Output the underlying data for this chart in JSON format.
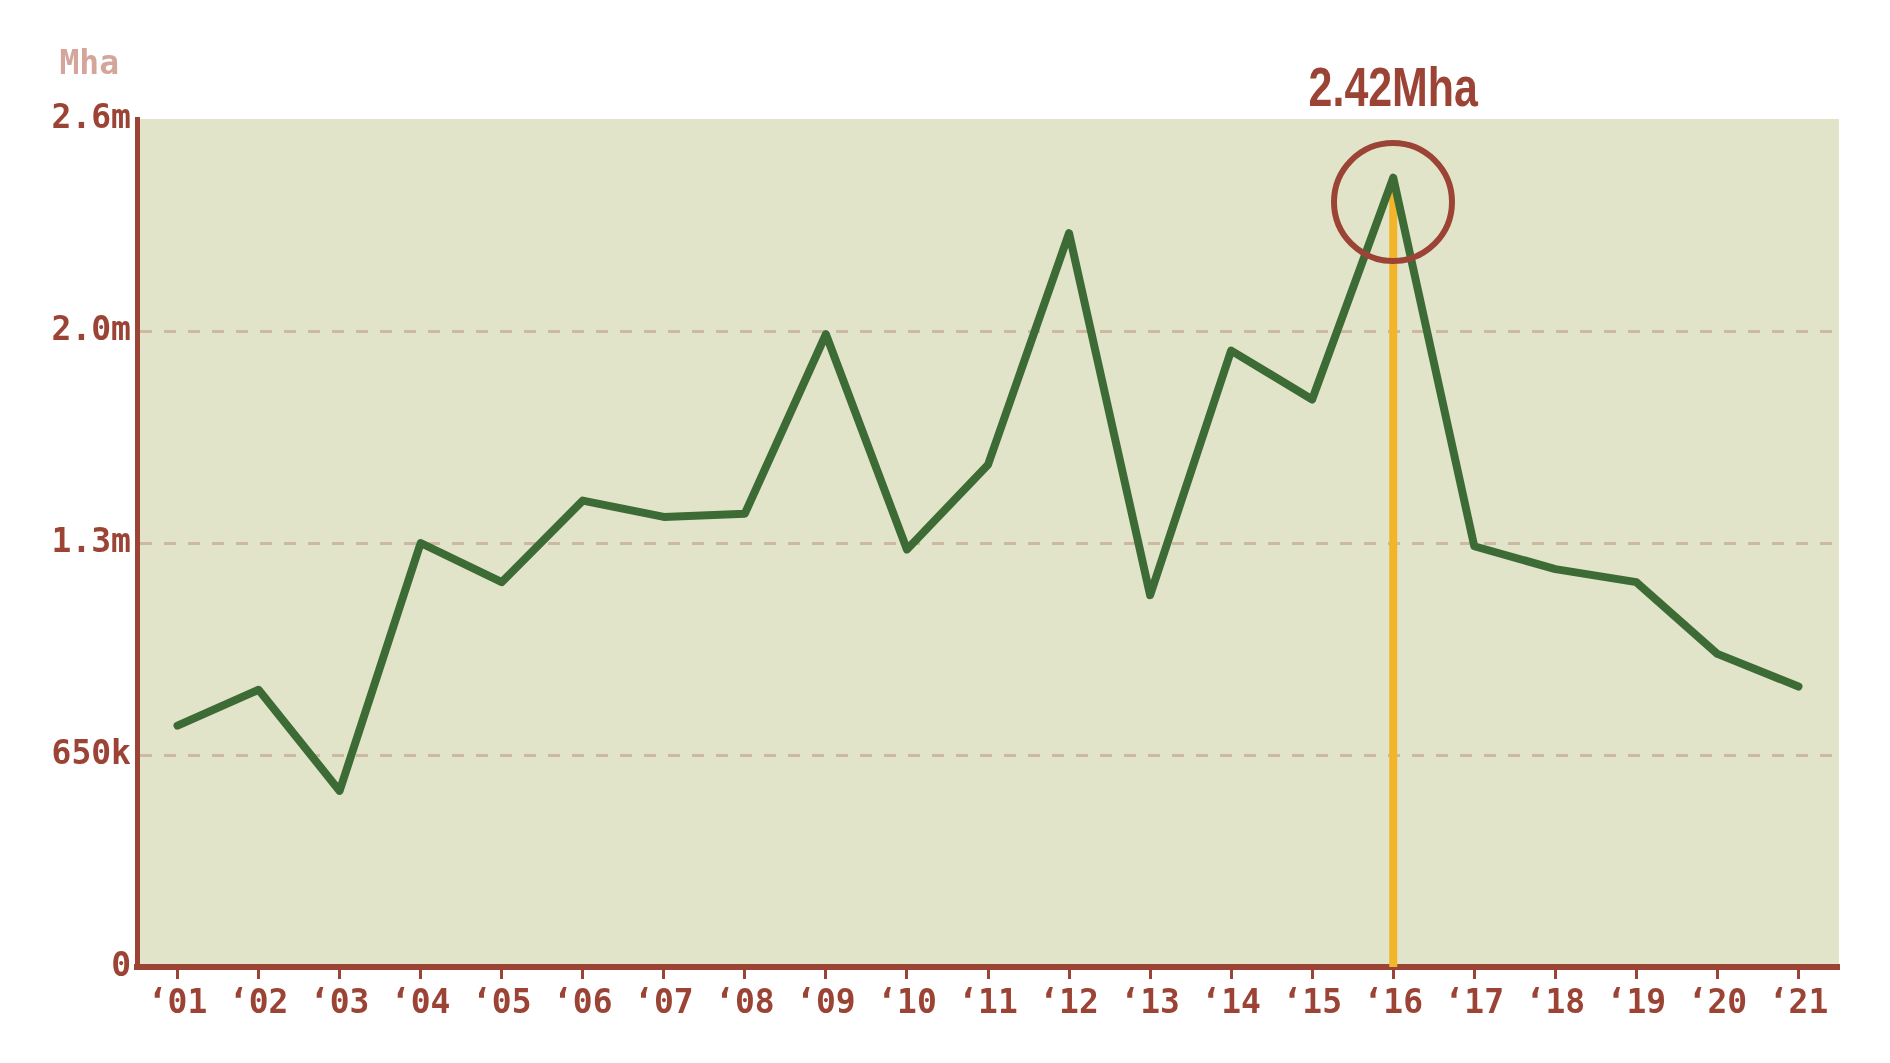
{
  "chart_data": {
    "type": "line",
    "ylabel": "Mha",
    "categories": [
      "‘01",
      "‘02",
      "‘03",
      "‘04",
      "‘05",
      "‘06",
      "‘07",
      "‘08",
      "‘09",
      "‘10",
      "‘11",
      "‘12",
      "‘13",
      "‘14",
      "‘15",
      "‘16",
      "‘17",
      "‘18",
      "‘19",
      "‘20",
      "‘21"
    ],
    "series": [
      {
        "color": "#3d6b35",
        "values": [
          740000,
          850000,
          540000,
          1300000,
          1180000,
          1430000,
          1380000,
          1390000,
          1940000,
          1280000,
          1540000,
          2250000,
          1140000,
          1890000,
          1740000,
          2420000,
          1290000,
          1220000,
          1180000,
          960000,
          860000
        ]
      }
    ],
    "ylim": [
      0,
      2600000
    ],
    "yticks": [
      0,
      {
        "value": 650000,
        "label": "650k"
      },
      {
        "value": 1300000,
        "label": "1.3m"
      },
      {
        "value": 1950000,
        "label": "2.0m"
      },
      {
        "value": 2600000,
        "label": "2.6m"
      }
    ],
    "grid": "y",
    "legend": false,
    "marker": "none",
    "line_style": "solid",
    "annotations": [
      {
        "text": "2.42Mha",
        "x": "‘16",
        "y": 2420000
      }
    ],
    "ref_lines": [
      {
        "axis": "x",
        "value": "‘16",
        "color": "#f2b52a"
      }
    ]
  }
}
